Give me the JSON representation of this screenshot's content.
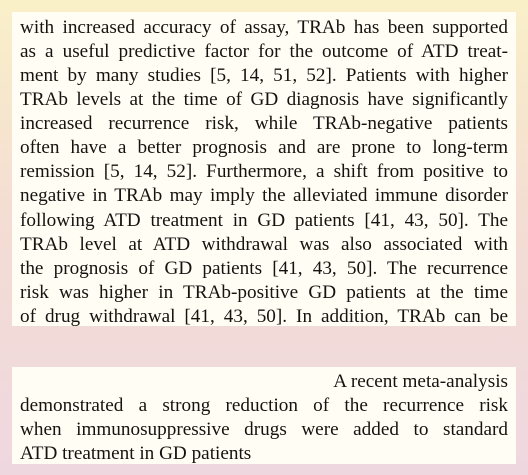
{
  "excerpts": [
    {
      "lines": [
        "with increased accuracy of assay, TRAb has been supported",
        "as a useful predictive factor for the outcome of ATD treat-",
        "ment by many studies [5, 14, 51, 52]. Patients with higher",
        "TRAb levels at the time of GD diagnosis have significantly",
        "increased recurrence risk, while TRAb-negative patients",
        "often have a better prognosis and are prone to long-term",
        "remission [5, 14, 52]. Furthermore, a shift from positive to",
        "negative in TRAb may imply the alleviated immune disorder"
      ]
    },
    {
      "lines": [
        "following ATD treatment in GD patients [41, 43, 50]. The",
        "TRAb level at ATD withdrawal was also associated with",
        "the prognosis of GD patients [41, 43, 50]. The recurrence",
        "risk was higher in TRAb-positive GD patients at the time",
        "of drug withdrawal [41, 43, 50]. In addition, TRAb can be"
      ]
    },
    {
      "lines": [
        "A recent meta-analysis",
        "demonstrated a strong reduction of the recurrence risk",
        "when immunosuppressive drugs were added to standard",
        "ATD treatment in GD patients"
      ]
    }
  ]
}
